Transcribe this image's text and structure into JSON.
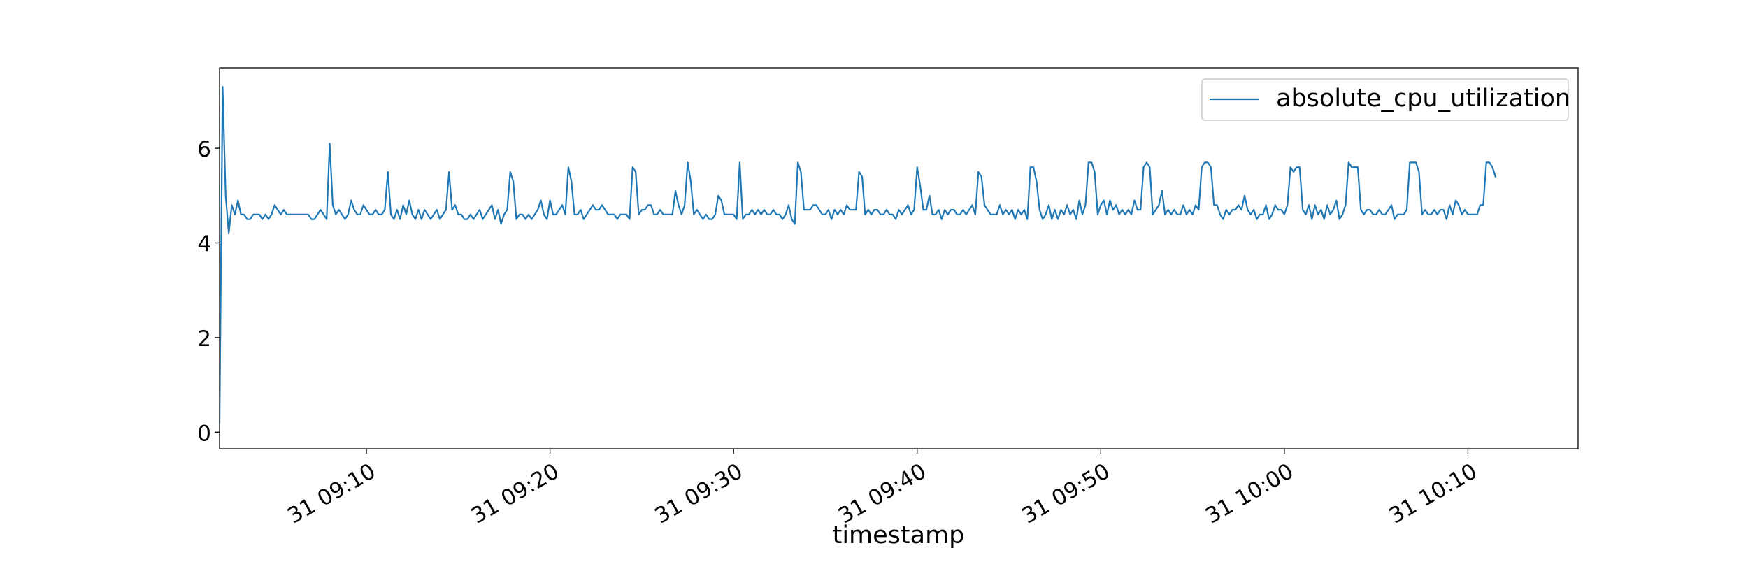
{
  "chart_data": {
    "type": "line",
    "title": "",
    "xlabel": "timestamp",
    "ylabel": "",
    "legend": {
      "placement": "top-right",
      "entries": [
        "absolute_cpu_utilization"
      ]
    },
    "grid": false,
    "xlim": [
      "09:02:00",
      "10:16:00"
    ],
    "ylim": [
      -0.35,
      7.7
    ],
    "y_ticks": [
      0,
      2,
      4,
      6
    ],
    "y_tick_labels": [
      "0",
      "2",
      "4",
      "6"
    ],
    "x_ticks": [
      "09:10",
      "09:20",
      "09:30",
      "09:40",
      "09:50",
      "10:00",
      "10:10"
    ],
    "x_tick_labels": [
      "31 09:10",
      "31 09:20",
      "31 09:30",
      "31 09:40",
      "31 09:50",
      "31 10:00",
      "31 10:10"
    ],
    "series": [
      {
        "name": "absolute_cpu_utilization",
        "color": "#1f77b4",
        "start_time": "09:02:00",
        "step_seconds": 10,
        "values": [
          0.2,
          7.3,
          5.0,
          4.2,
          4.8,
          4.6,
          4.9,
          4.6,
          4.6,
          4.5,
          4.5,
          4.6,
          4.6,
          4.6,
          4.5,
          4.6,
          4.5,
          4.6,
          4.8,
          4.7,
          4.6,
          4.7,
          4.6,
          4.6,
          4.6,
          4.6,
          4.6,
          4.6,
          4.6,
          4.6,
          4.5,
          4.5,
          4.6,
          4.7,
          4.6,
          4.5,
          6.1,
          4.8,
          4.6,
          4.7,
          4.6,
          4.5,
          4.6,
          4.9,
          4.7,
          4.6,
          4.6,
          4.8,
          4.7,
          4.6,
          4.6,
          4.7,
          4.6,
          4.6,
          4.7,
          5.5,
          4.6,
          4.5,
          4.7,
          4.5,
          4.8,
          4.6,
          4.9,
          4.6,
          4.5,
          4.7,
          4.5,
          4.7,
          4.6,
          4.5,
          4.6,
          4.7,
          4.5,
          4.6,
          4.7,
          5.5,
          4.7,
          4.8,
          4.6,
          4.6,
          4.5,
          4.5,
          4.6,
          4.5,
          4.6,
          4.7,
          4.5,
          4.6,
          4.7,
          4.8,
          4.5,
          4.7,
          4.4,
          4.6,
          4.7,
          5.5,
          5.3,
          4.5,
          4.6,
          4.6,
          4.5,
          4.6,
          4.5,
          4.6,
          4.7,
          4.9,
          4.6,
          4.5,
          4.9,
          4.6,
          4.6,
          4.7,
          4.8,
          4.6,
          5.6,
          5.3,
          4.6,
          4.6,
          4.7,
          4.5,
          4.6,
          4.7,
          4.8,
          4.7,
          4.7,
          4.8,
          4.7,
          4.6,
          4.6,
          4.6,
          4.5,
          4.6,
          4.6,
          4.6,
          4.5,
          5.6,
          5.5,
          4.6,
          4.7,
          4.7,
          4.8,
          4.8,
          4.6,
          4.6,
          4.7,
          4.6,
          4.6,
          4.6,
          4.6,
          5.1,
          4.8,
          4.6,
          4.8,
          5.7,
          5.3,
          4.6,
          4.7,
          4.6,
          4.5,
          4.6,
          4.5,
          4.5,
          4.6,
          5.0,
          4.9,
          4.6,
          4.6,
          4.6,
          4.6,
          4.5,
          5.7,
          4.5,
          4.6,
          4.6,
          4.7,
          4.6,
          4.7,
          4.6,
          4.7,
          4.6,
          4.6,
          4.7,
          4.6,
          4.6,
          4.5,
          4.6,
          4.8,
          4.5,
          4.4,
          5.7,
          5.5,
          4.7,
          4.7,
          4.7,
          4.8,
          4.8,
          4.7,
          4.6,
          4.6,
          4.7,
          4.5,
          4.7,
          4.6,
          4.7,
          4.6,
          4.8,
          4.7,
          4.7,
          4.7,
          5.5,
          5.4,
          4.6,
          4.7,
          4.6,
          4.7,
          4.7,
          4.6,
          4.6,
          4.7,
          4.6,
          4.6,
          4.5,
          4.7,
          4.6,
          4.7,
          4.8,
          4.6,
          4.7,
          5.6,
          5.2,
          4.7,
          4.7,
          5.0,
          4.6,
          4.6,
          4.7,
          4.5,
          4.7,
          4.6,
          4.7,
          4.7,
          4.6,
          4.6,
          4.7,
          4.6,
          4.7,
          4.8,
          4.6,
          5.5,
          5.4,
          4.8,
          4.7,
          4.6,
          4.6,
          4.6,
          4.8,
          4.6,
          4.7,
          4.6,
          4.7,
          4.5,
          4.7,
          4.6,
          4.7,
          4.5,
          5.6,
          5.6,
          5.3,
          4.7,
          4.5,
          4.6,
          4.8,
          4.5,
          4.7,
          4.5,
          4.7,
          4.6,
          4.8,
          4.6,
          4.7,
          4.5,
          4.9,
          4.6,
          4.8,
          5.7,
          5.7,
          5.5,
          4.6,
          4.8,
          4.9,
          4.6,
          4.9,
          4.7,
          4.8,
          4.6,
          4.7,
          4.6,
          4.7,
          4.6,
          4.9,
          4.7,
          4.7,
          5.6,
          5.7,
          5.6,
          4.6,
          4.7,
          4.8,
          5.1,
          4.6,
          4.7,
          4.6,
          4.7,
          4.6,
          4.6,
          4.8,
          4.6,
          4.7,
          4.6,
          4.8,
          4.7,
          5.6,
          5.7,
          5.7,
          5.6,
          4.8,
          4.8,
          4.6,
          4.5,
          4.7,
          4.6,
          4.7,
          4.7,
          4.8,
          4.7,
          5.0,
          4.7,
          4.6,
          4.7,
          4.5,
          4.6,
          4.6,
          4.8,
          4.5,
          4.6,
          4.8,
          4.7,
          4.7,
          4.6,
          4.8,
          5.6,
          5.5,
          5.6,
          5.6,
          4.7,
          4.6,
          4.8,
          4.5,
          4.8,
          4.6,
          4.7,
          4.5,
          4.8,
          4.6,
          4.7,
          4.9,
          4.5,
          4.6,
          4.8,
          5.7,
          5.6,
          5.6,
          5.6,
          4.7,
          4.6,
          4.7,
          4.7,
          4.6,
          4.6,
          4.7,
          4.6,
          4.6,
          4.7,
          4.8,
          4.5,
          4.6,
          4.6,
          4.6,
          4.7,
          5.7,
          5.7,
          5.7,
          5.5,
          4.6,
          4.7,
          4.6,
          4.6,
          4.7,
          4.6,
          4.7,
          4.7,
          4.5,
          4.8,
          4.6,
          4.9,
          4.8,
          4.6,
          4.7,
          4.6,
          4.6,
          4.6,
          4.6,
          4.8,
          4.8,
          5.7,
          5.7,
          5.6,
          5.4
        ]
      }
    ]
  }
}
